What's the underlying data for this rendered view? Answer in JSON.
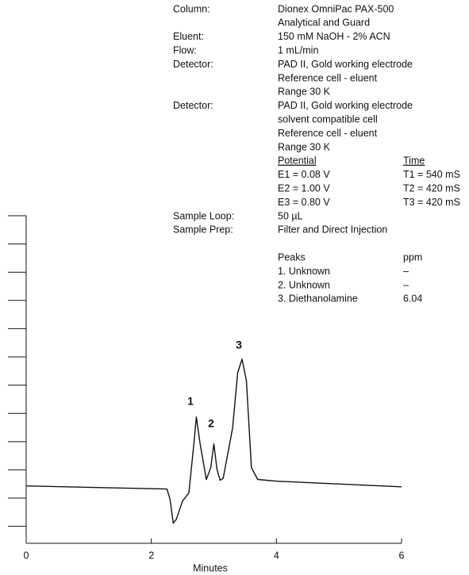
{
  "chart_data": {
    "type": "line",
    "x_label": "Minutes",
    "x": [
      0,
      2.25,
      2.3,
      2.35,
      2.4,
      2.5,
      2.6,
      2.68,
      2.72,
      2.78,
      2.88,
      2.95,
      3.0,
      3.05,
      3.1,
      3.15,
      3.3,
      3.38,
      3.45,
      3.52,
      3.6,
      3.7,
      4.0,
      6.0
    ],
    "series": [
      {
        "color": "#111111",
        "values": [
          1.43,
          1.32,
          0.95,
          0.11,
          0.25,
          0.9,
          1.18,
          2.92,
          3.87,
          2.92,
          1.66,
          2.08,
          2.92,
          2.02,
          1.63,
          1.71,
          3.48,
          5.44,
          5.92,
          5.16,
          2.08,
          1.66,
          1.6,
          1.4
        ]
      }
    ],
    "xlim": [
      0,
      6
    ],
    "xticks": [
      0,
      2,
      4,
      6
    ],
    "ylim": [
      -0.6,
      11
    ],
    "yticks": [
      0,
      1,
      2,
      3,
      4,
      5,
      6,
      7,
      8,
      9,
      10,
      11
    ],
    "peak_labels": [
      "1",
      "2",
      "3"
    ],
    "conditions": [
      {
        "label": "Column:",
        "lines": [
          "Dionex OmniPac PAX-500",
          "Analytical and Guard"
        ]
      },
      {
        "label": "Eluent:",
        "lines": [
          "150 mM NaOH - 2% ACN"
        ]
      },
      {
        "label": "Flow:",
        "lines": [
          "1 mL/min"
        ]
      },
      {
        "label": "Detector:",
        "lines": [
          "PAD II, Gold working electrode",
          "Reference cell - eluent",
          "Range 30 K"
        ]
      },
      {
        "label": "Detector:",
        "lines": [
          "PAD II, Gold working electrode",
          "solvent compatible cell",
          "Reference cell - eluent",
          "Range 30 K"
        ]
      }
    ],
    "potential": {
      "headers": [
        "Potential",
        "Time"
      ],
      "rows": [
        [
          "E1 = 0.08 V",
          "T1 = 540 mS"
        ],
        [
          "E2 = 1.00 V",
          "T2 = 420 mS"
        ],
        [
          "E3 = 0.80 V",
          "T3 = 420 mS"
        ]
      ]
    },
    "sample": [
      {
        "label": "Sample Loop:",
        "lines": [
          "50 µL"
        ]
      },
      {
        "label": "Sample Prep:",
        "lines": [
          "Filter and Direct Injection"
        ]
      }
    ],
    "peaks": {
      "headers": [
        "Peaks",
        "ppm"
      ],
      "rows": [
        [
          "1. Unknown",
          "–"
        ],
        [
          "2. Unknown",
          "–"
        ],
        [
          "3. Diethanolamine",
          "6.04"
        ]
      ]
    }
  }
}
